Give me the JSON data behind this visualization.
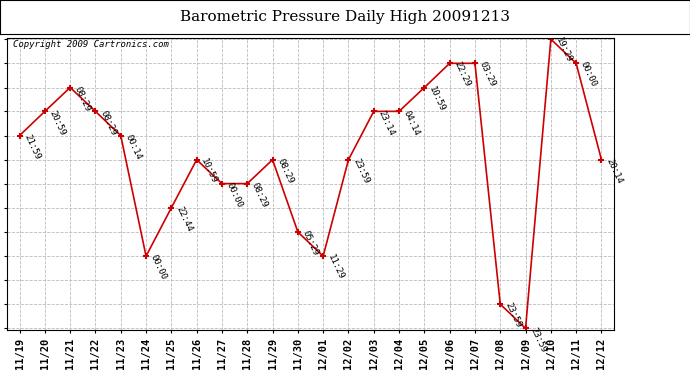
{
  "title": "Barometric Pressure Daily High 20091213",
  "copyright": "Copyright 2009 Cartronics.com",
  "x_labels": [
    "11/19",
    "11/20",
    "11/21",
    "11/22",
    "11/23",
    "11/24",
    "11/25",
    "11/26",
    "11/27",
    "11/28",
    "11/29",
    "11/30",
    "12/01",
    "12/02",
    "12/03",
    "12/04",
    "12/05",
    "12/06",
    "12/07",
    "12/08",
    "12/09",
    "12/10",
    "12/11",
    "12/12"
  ],
  "y_values": [
    30.054,
    30.128,
    30.201,
    30.128,
    30.054,
    29.685,
    29.833,
    29.98,
    29.907,
    29.907,
    29.98,
    29.759,
    29.685,
    29.98,
    30.128,
    30.128,
    30.201,
    30.275,
    30.275,
    29.538,
    29.464,
    30.349,
    30.275,
    29.98
  ],
  "point_labels": [
    "21:59",
    "20:59",
    "08:29",
    "08:29",
    "00:14",
    "00:00",
    "22:44",
    "10:59",
    "00:00",
    "08:29",
    "08:29",
    "05:29",
    "11:29",
    "23:59",
    "23:14",
    "04:14",
    "10:59",
    "22:29",
    "03:29",
    "23:59",
    "23:59",
    "19:29",
    "00:00",
    "20:14"
  ],
  "y_ticks": [
    29.464,
    29.538,
    29.612,
    29.685,
    29.759,
    29.833,
    29.907,
    29.98,
    30.054,
    30.128,
    30.201,
    30.275,
    30.349
  ],
  "line_color": "#cc0000",
  "marker_color": "#cc0000",
  "bg_color": "#ffffff",
  "plot_bg_color": "#ffffff",
  "grid_color": "#bbbbbb",
  "title_fontsize": 11,
  "label_fontsize": 6.5,
  "tick_fontsize": 7.5,
  "copyright_fontsize": 6.5
}
